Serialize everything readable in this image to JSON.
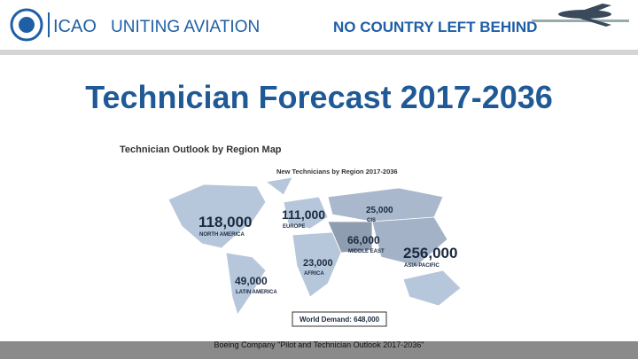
{
  "header": {
    "org": "ICAO",
    "slogan": "UNITING AVIATION",
    "campaign": "NO COUNTRY LEFT BEHIND"
  },
  "title": "Technician Forecast 2017-2036",
  "map": {
    "title": "Technician Outlook by Region Map",
    "subtitle": "New Technicians by Region 2017-2036",
    "regions": [
      {
        "value": "118,000",
        "name": "NORTH AMERICA"
      },
      {
        "value": "111,000",
        "name": "EUROPE"
      },
      {
        "value": "25,000",
        "name": "CIS"
      },
      {
        "value": "66,000",
        "name": "MIDDLE EAST"
      },
      {
        "value": "256,000",
        "name": "ASIA-PACIFIC"
      },
      {
        "value": "23,000",
        "name": "AFRICA"
      },
      {
        "value": "49,000",
        "name": "LATIN AMERICA"
      }
    ],
    "total": "World Demand: 648,000"
  },
  "footer": "Boeing Company \"Pilot and Technician Outlook 2017-2036\""
}
